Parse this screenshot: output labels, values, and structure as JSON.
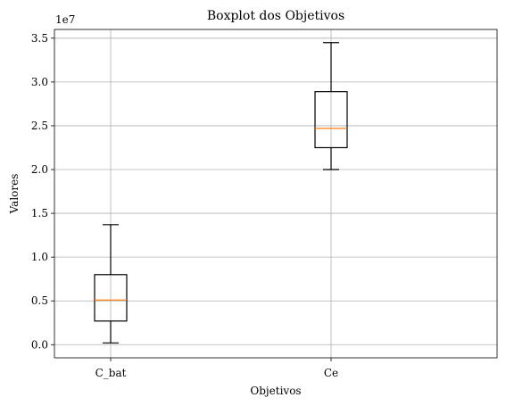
{
  "chart_data": {
    "type": "boxplot",
    "title": "Boxplot dos Objetivos",
    "xlabel": "Objetivos",
    "ylabel": "Valores",
    "y_offset_label": "1e7",
    "y_multiplier": 10000000,
    "ylim": [
      -0.15,
      3.6
    ],
    "y_ticks": [
      0.0,
      0.5,
      1.0,
      1.5,
      2.0,
      2.5,
      3.0,
      3.5
    ],
    "y_tick_labels": [
      "0.0",
      "0.5",
      "1.0",
      "1.5",
      "2.0",
      "2.5",
      "3.0",
      "3.5"
    ],
    "grid": true,
    "categories": [
      "C_bat",
      "Ce"
    ],
    "boxes": [
      {
        "category": "C_bat",
        "whisker_low": 0.02,
        "q1": 0.27,
        "median": 0.51,
        "q3": 0.8,
        "whisker_high": 1.37
      },
      {
        "category": "Ce",
        "whisker_low": 2.0,
        "q1": 2.25,
        "median": 2.47,
        "q3": 2.89,
        "whisker_high": 3.45
      }
    ],
    "colors": {
      "box": "#000000",
      "median": "#ff7f0e",
      "grid": "#b0b0b0"
    }
  }
}
